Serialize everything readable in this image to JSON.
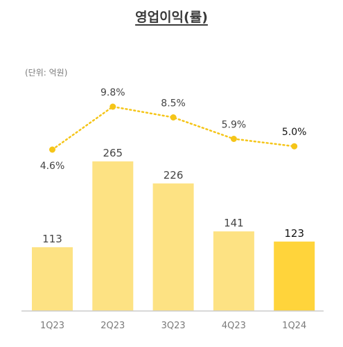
{
  "chart_data": {
    "type": "bar",
    "title": "영업이익(률)",
    "unit": "(단위: 억원)",
    "categories": [
      "1Q23",
      "2Q23",
      "3Q23",
      "4Q23",
      "1Q24"
    ],
    "series": [
      {
        "name": "",
        "type": "bar",
        "values": [
          113,
          265,
          226,
          141,
          123
        ],
        "labels": [
          "113",
          "265",
          "226",
          "141",
          "123"
        ]
      },
      {
        "name": "",
        "type": "line",
        "values": [
          4.6,
          9.8,
          8.5,
          5.9,
          5.0
        ],
        "labels": [
          "4.6%",
          "9.8%",
          "8.5%",
          "5.9%",
          "5.0%"
        ]
      }
    ],
    "colors": {
      "bar": "#fde283",
      "bar_highlight": "#ffd43b",
      "line": "#f5c518",
      "axis": "#cccccc"
    },
    "highlight_index": 4
  }
}
